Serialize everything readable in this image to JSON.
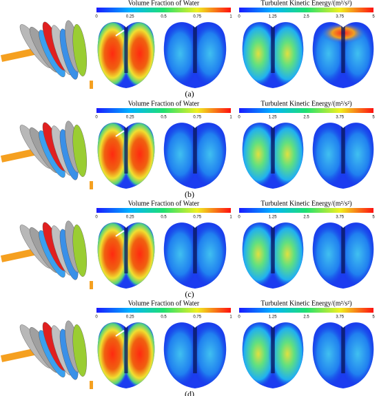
{
  "rows": [
    {
      "label": "(a)",
      "colorbars": [
        {
          "title": "Volume Fraction of Water",
          "ticks": [
            "0",
            "0.25",
            "0.5",
            "0.75",
            "1"
          ]
        },
        {
          "title": "Turbulent Kinetic Energy/(m²/s²)",
          "ticks": [
            "0",
            "1.25",
            "2.5",
            "3.75",
            "5"
          ]
        }
      ]
    },
    {
      "label": "(b)",
      "colorbars": [
        {
          "title": "Volume Fraction of Water",
          "ticks": [
            "0",
            "0.25",
            "0.5",
            "0.75",
            "1"
          ]
        },
        {
          "title": "Turbulent Kinetic Energy/(m²/s²)",
          "ticks": [
            "0",
            "1.25",
            "2.5",
            "3.75",
            "5"
          ]
        }
      ]
    },
    {
      "label": "(c)",
      "colorbars": [
        {
          "title": "Volume Fraction of Water",
          "ticks": [
            "0",
            "0.25",
            "0.5",
            "0.75",
            "1"
          ]
        },
        {
          "title": "Turbulent Kinetic Energy/(m²/s²)",
          "ticks": [
            "0",
            "1.25",
            "2.5",
            "3.75",
            "5"
          ]
        }
      ]
    },
    {
      "label": "(d)",
      "colorbars": [
        {
          "title": "Volume Fraction of Water",
          "ticks": [
            "0",
            "0.25",
            "0.5",
            "0.75",
            "1"
          ]
        },
        {
          "title": "Turbulent Kinetic Energy/(m²/s²)",
          "ticks": [
            "0",
            "1.25",
            "2.5",
            "3.75",
            "5"
          ]
        }
      ]
    }
  ]
}
